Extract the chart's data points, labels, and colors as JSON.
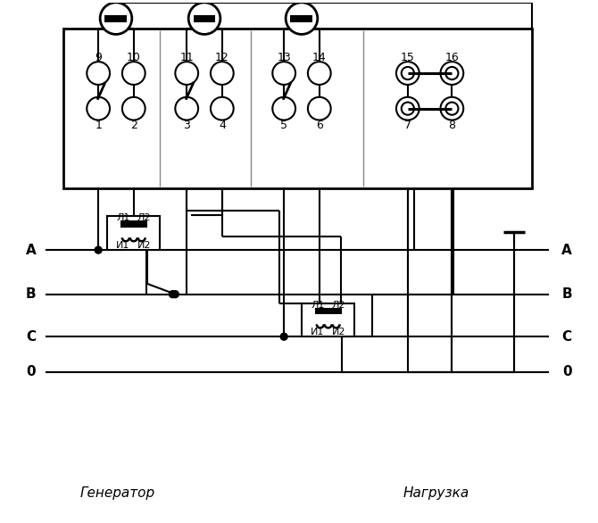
{
  "bg_color": "#ffffff",
  "fig_width": 6.7,
  "fig_height": 5.86,
  "generator_label": "Генератор",
  "load_label": "Нагрузка",
  "bus_labels_left": [
    "А",
    "В",
    "С",
    "0"
  ],
  "bus_labels_right": [
    "А",
    "В",
    "С",
    "0"
  ],
  "top_nums": [
    "9",
    "10",
    "11",
    "12",
    "13",
    "14",
    "15",
    "16"
  ],
  "bot_nums": [
    "1",
    "2",
    "3",
    "4",
    "5",
    "6",
    "7",
    "8"
  ],
  "ct1_labels_top": [
    "Л1",
    "Л2"
  ],
  "ct1_labels_bot": [
    "И1",
    "И2"
  ],
  "ct2_labels_top": [
    "Л1",
    "Л2"
  ],
  "ct2_labels_bot": [
    "И1",
    "И2"
  ]
}
